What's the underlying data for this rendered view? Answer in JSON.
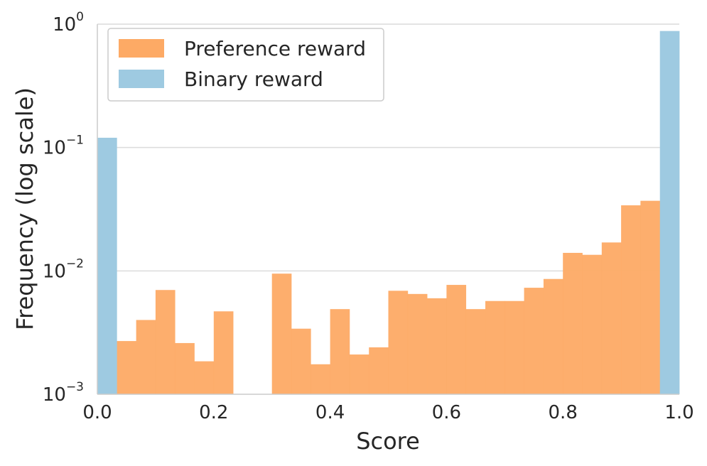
{
  "chart_data": {
    "type": "bar",
    "xlabel": "Score",
    "ylabel": "Frequency (log scale)",
    "xlim": [
      0.0,
      1.0
    ],
    "ylim": [
      0.001,
      1
    ],
    "yscale": "log",
    "bin_width": 0.0333,
    "grid": "horizontal",
    "legend_placement": "top-left",
    "x_ticks": [
      {
        "value": 0.0,
        "label": "0.0"
      },
      {
        "value": 0.2,
        "label": "0.2"
      },
      {
        "value": 0.4,
        "label": "0.4"
      },
      {
        "value": 0.6,
        "label": "0.6"
      },
      {
        "value": 0.8,
        "label": "0.8"
      },
      {
        "value": 1.0,
        "label": "1.0"
      }
    ],
    "y_ticks": [
      {
        "value": 0.001,
        "base": "10",
        "exp": "−3"
      },
      {
        "value": 0.01,
        "base": "10",
        "exp": "−2"
      },
      {
        "value": 0.1,
        "base": "10",
        "exp": "−1"
      },
      {
        "value": 1,
        "base": "10",
        "exp": "0"
      }
    ],
    "series": [
      {
        "name": "Preference reward",
        "color": "#fdaa65",
        "x": [
          0.0333,
          0.0667,
          0.1,
          0.1333,
          0.1667,
          0.2,
          0.3,
          0.3333,
          0.3667,
          0.4,
          0.4333,
          0.4667,
          0.5,
          0.5333,
          0.5667,
          0.6,
          0.6333,
          0.6667,
          0.7,
          0.7333,
          0.7667,
          0.8,
          0.8333,
          0.8667,
          0.9,
          0.9333
        ],
        "values": [
          0.0027,
          0.004,
          0.007,
          0.0026,
          0.00185,
          0.0047,
          0.0095,
          0.0034,
          0.00175,
          0.0049,
          0.0021,
          0.0024,
          0.0069,
          0.0065,
          0.006,
          0.0077,
          0.0049,
          0.0057,
          0.0057,
          0.0073,
          0.0086,
          0.014,
          0.0135,
          0.017,
          0.034,
          0.037
        ]
      },
      {
        "name": "Binary reward",
        "color": "#9ecae1",
        "x": [
          0.0,
          0.9667
        ],
        "values": [
          0.12,
          0.88
        ]
      }
    ]
  }
}
